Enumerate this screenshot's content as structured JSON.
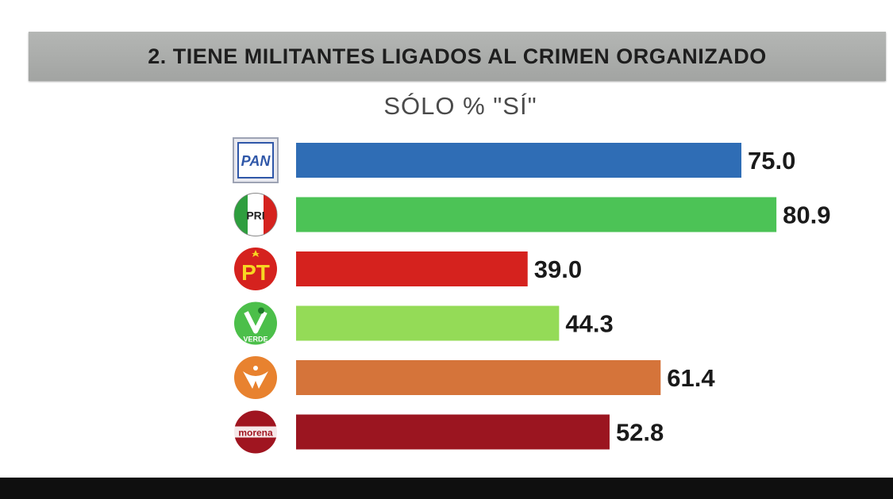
{
  "chart_data": {
    "type": "bar",
    "orientation": "horizontal",
    "title": "2. TIENE MILITANTES LIGADOS AL CRIMEN ORGANIZADO",
    "subtitle": "SÓLO % \"SÍ\"",
    "categories": [
      "PAN",
      "PRI",
      "PT",
      "PVEM",
      "MC",
      "morena"
    ],
    "values": [
      75.0,
      80.9,
      39.0,
      44.3,
      61.4,
      52.8
    ],
    "value_labels": [
      "75.0",
      "80.9",
      "39.0",
      "44.3",
      "61.4",
      "52.8"
    ],
    "colors": [
      "#2f6db5",
      "#4cc356",
      "#d5221e",
      "#94db57",
      "#d5743a",
      "#9b1520"
    ],
    "xlim": [
      0,
      100
    ],
    "grid": false,
    "legend": "none",
    "logos": [
      {
        "icon": "pan-logo-icon",
        "text": "PAN",
        "color": "#2f57a8"
      },
      {
        "icon": "pri-logo-icon",
        "text": "PRI",
        "color": "#d5221e"
      },
      {
        "icon": "pt-logo-icon",
        "text": "PT",
        "color": "#d5221e"
      },
      {
        "icon": "pvem-logo-icon",
        "text": "VERDE",
        "color": "#4cbf4a"
      },
      {
        "icon": "mc-logo-icon",
        "text": "",
        "color": "#e8822f"
      },
      {
        "icon": "morena-logo-icon",
        "text": "morena",
        "color": "#a01520"
      }
    ]
  }
}
